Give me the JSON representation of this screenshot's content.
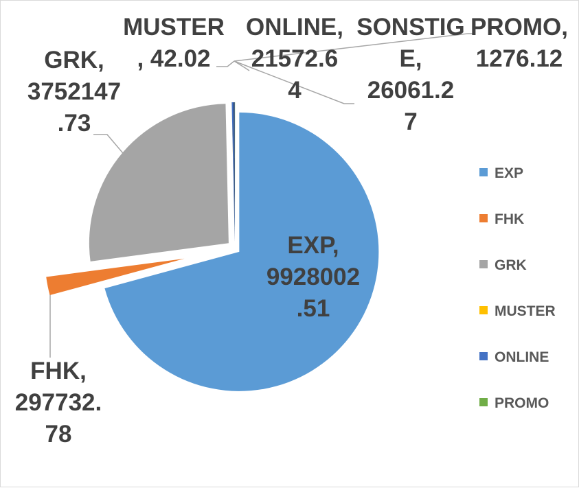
{
  "chart_data": {
    "type": "pie",
    "title": "",
    "categories": [
      "EXP",
      "FHK",
      "GRK",
      "MUSTER",
      "ONLINE",
      "SONSTIGE",
      "PROMO"
    ],
    "values": [
      9928002.51,
      297732.78,
      3752147.73,
      42.02,
      21572.64,
      26061.27,
      1276.12
    ],
    "colors": [
      "#5b9bd5",
      "#ed7d31",
      "#a5a5a5",
      "#ffc000",
      "#4472c4",
      "#264478",
      "#70ad47"
    ],
    "exploded": true,
    "legend_position": "right",
    "data_labels": [
      {
        "lines": [
          "EXP,",
          "9928002",
          ".51"
        ]
      },
      {
        "lines": [
          "FHK,",
          "297732.",
          "78"
        ]
      },
      {
        "lines": [
          "GRK,",
          "3752147",
          ".73"
        ]
      },
      {
        "lines": [
          "MUSTER",
          ", 42.02"
        ]
      },
      {
        "lines": [
          "ONLINE,",
          "21572.6",
          "4"
        ]
      },
      {
        "lines": [
          "SONSTIG",
          "E,",
          "26061.2",
          "7"
        ]
      },
      {
        "lines": [
          "PROMO,",
          "1276.12"
        ]
      }
    ],
    "legend": [
      {
        "label": "EXP",
        "color": "#5b9bd5"
      },
      {
        "label": "FHK",
        "color": "#ed7d31"
      },
      {
        "label": "GRK",
        "color": "#a5a5a5"
      },
      {
        "label": "MUSTER",
        "color": "#ffc000"
      },
      {
        "label": "ONLINE",
        "color": "#4472c4"
      },
      {
        "label": "PROMO",
        "color": "#70ad47"
      }
    ]
  }
}
